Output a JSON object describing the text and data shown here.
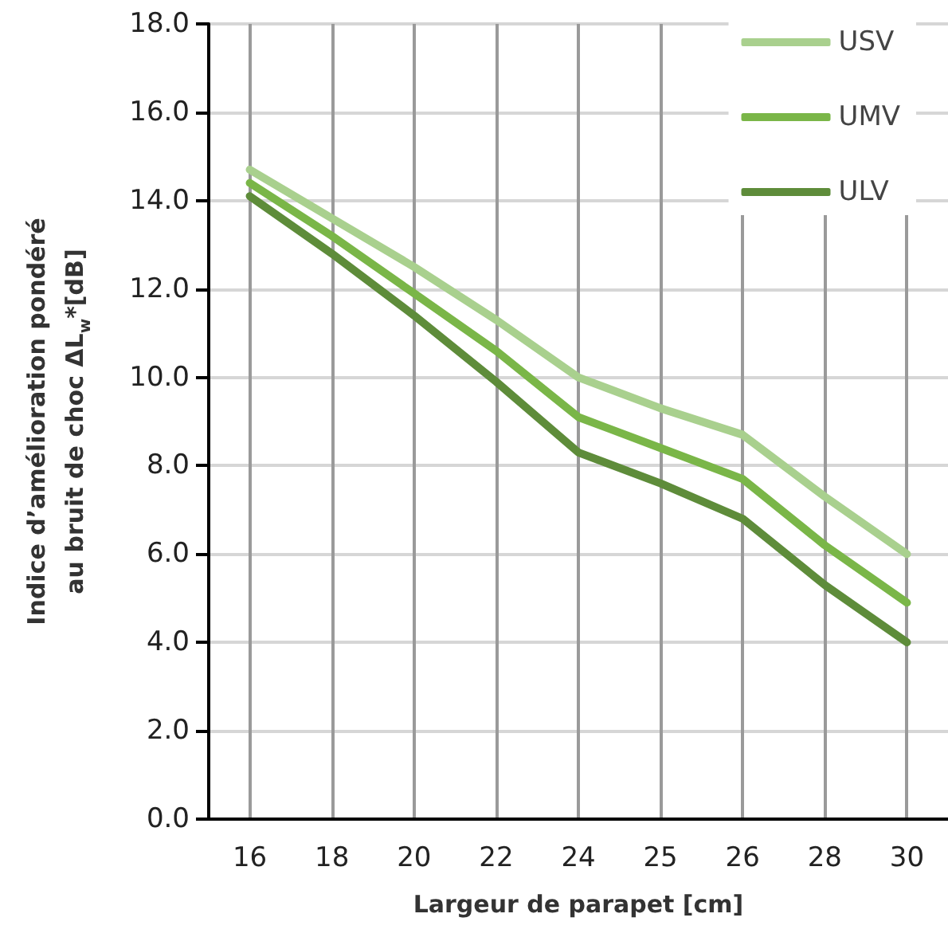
{
  "chart_data": {
    "type": "line",
    "xlabel": "Largeur de parapet [cm]",
    "ylabel": "Indice d’amélioration pondéré\nau bruit de choc ΔL$_{w}$*[dB]",
    "categories": [
      "16",
      "18",
      "20",
      "22",
      "24",
      "25",
      "26",
      "28",
      "30"
    ],
    "series": [
      {
        "name": "USV",
        "color": "#a9d08e",
        "values": [
          14.7,
          13.6,
          12.5,
          11.3,
          10.0,
          9.3,
          8.7,
          7.3,
          6.0
        ]
      },
      {
        "name": "UMV",
        "color": "#7ab648",
        "values": [
          14.4,
          13.2,
          11.9,
          10.6,
          9.1,
          8.4,
          7.7,
          6.2,
          4.9
        ]
      },
      {
        "name": "ULV",
        "color": "#5e8c3a",
        "values": [
          14.1,
          12.8,
          11.4,
          9.9,
          8.3,
          7.6,
          6.8,
          5.3,
          4.0
        ]
      }
    ],
    "ylim": [
      0,
      18
    ],
    "yticks": [
      {
        "value": 0,
        "label": "0.0"
      },
      {
        "value": 2,
        "label": "2.0"
      },
      {
        "value": 4,
        "label": "4.0"
      },
      {
        "value": 6,
        "label": "6.0"
      },
      {
        "value": 8,
        "label": "8.0"
      },
      {
        "value": 10,
        "label": "10.0"
      },
      {
        "value": 12,
        "label": "12.0"
      },
      {
        "value": 14,
        "label": "14.0"
      },
      {
        "value": 16,
        "label": "16.0"
      },
      {
        "value": 18,
        "label": "18.0"
      }
    ],
    "grid": true,
    "legend": "top right",
    "marker": "none",
    "line_style": "solid"
  }
}
